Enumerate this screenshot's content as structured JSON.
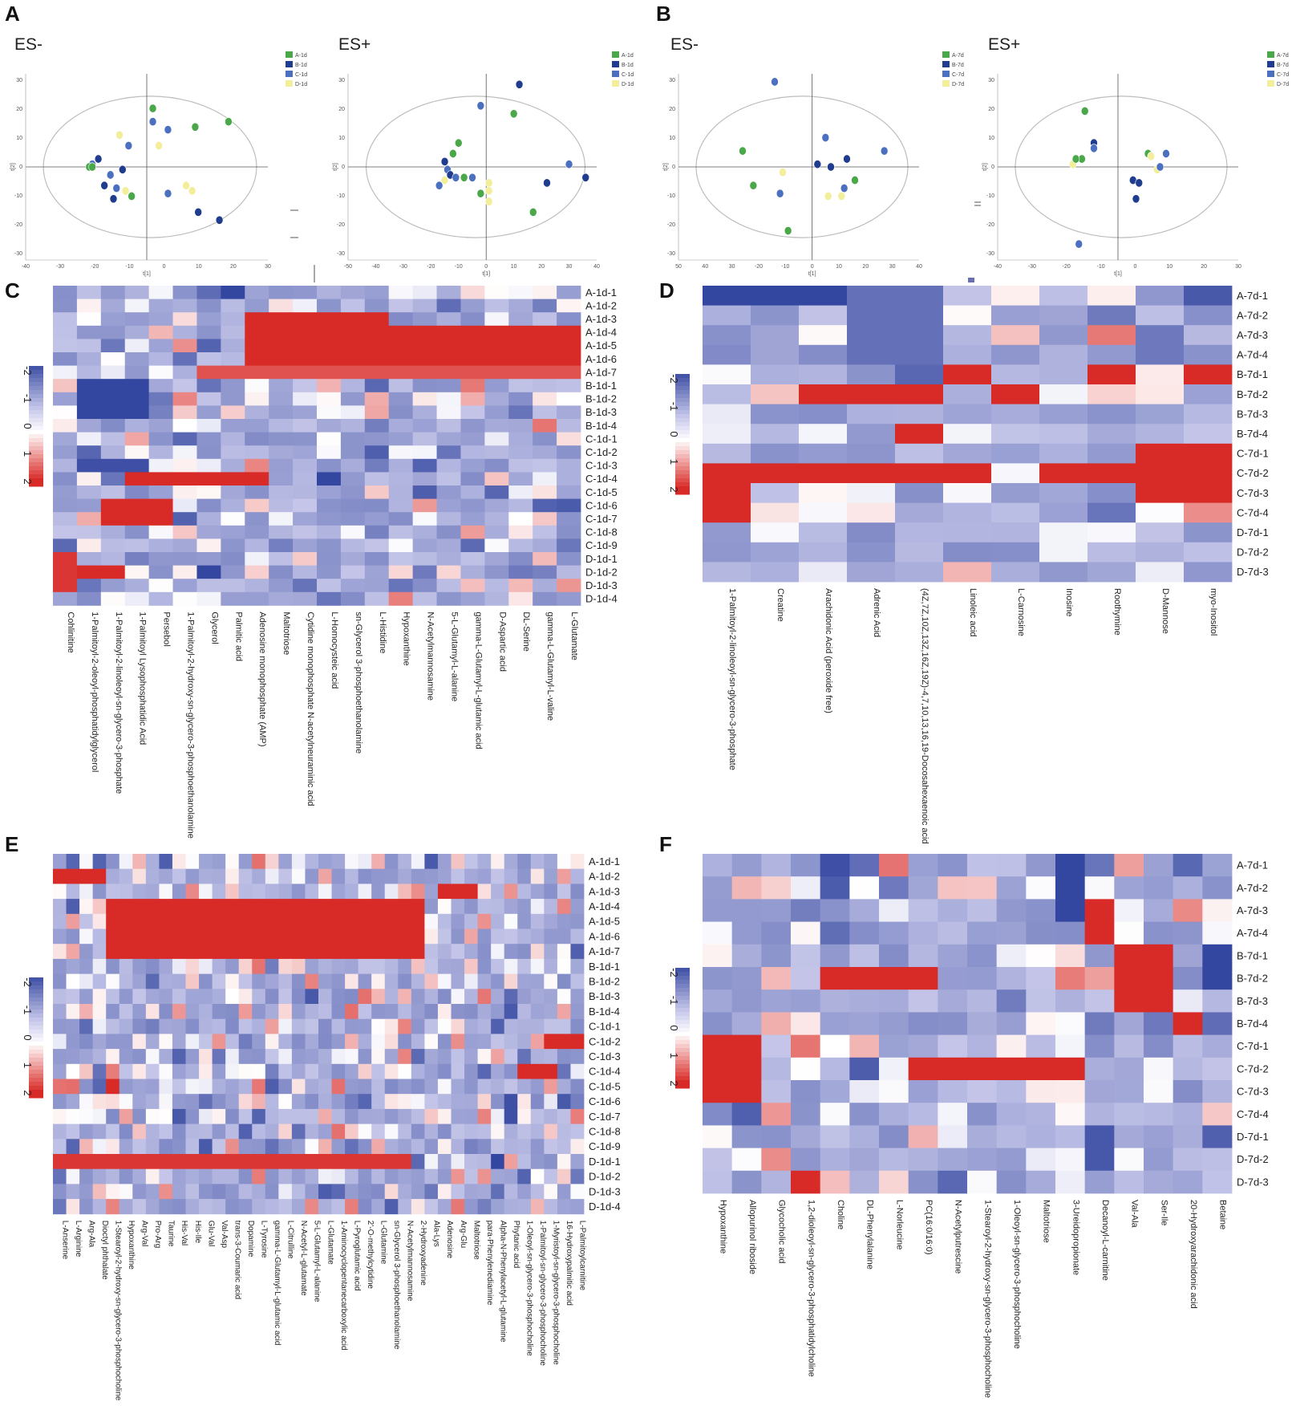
{
  "panels": {
    "A": "A",
    "B": "B",
    "C": "C",
    "D": "D",
    "E": "E",
    "F": "F"
  },
  "colors": {
    "green": "#4aa84a",
    "navy": "#1f3c8f",
    "blue": "#4b70c0",
    "yellow": "#f2ee9a",
    "ellipse": "#bdbdbd",
    "axis": "#555555"
  },
  "pca_tick_labels": {
    "y": [
      "30",
      "20",
      "10",
      "0",
      "-10",
      "-20",
      "-30"
    ],
    "x40": [
      "-40",
      "-30",
      "-20",
      "-10",
      "0",
      "10",
      "20",
      "30"
    ],
    "x50": [
      "-50",
      "-40",
      "-30",
      "-20",
      "-10",
      "0",
      "10",
      "20",
      "30",
      "40"
    ],
    "x50b": [
      "50",
      "40",
      "30",
      "-20",
      "-10",
      "0",
      "10",
      "20",
      "30",
      "40"
    ],
    "axis_x": "t[1]",
    "axis_y": "t[2]"
  },
  "chart_data": [
    {
      "type": "scatter",
      "panel": "A",
      "subtitle": "ES-",
      "xlim": [
        -40,
        40
      ],
      "ylim": [
        -35,
        35
      ],
      "legend": [
        "A-1d",
        "B-1d",
        "C-1d",
        "D-1d"
      ],
      "points": [
        {
          "g": 2,
          "x": -18,
          "y": 1
        },
        {
          "g": 1,
          "x": -16,
          "y": 3
        },
        {
          "g": 0,
          "x": -19,
          "y": 0
        },
        {
          "g": 0,
          "x": -18,
          "y": 0
        },
        {
          "g": 1,
          "x": -14,
          "y": -7
        },
        {
          "g": 2,
          "x": -12,
          "y": -3
        },
        {
          "g": 2,
          "x": -10,
          "y": -8
        },
        {
          "g": 1,
          "x": -11,
          "y": -12
        },
        {
          "g": 3,
          "x": -7,
          "y": -9
        },
        {
          "g": 0,
          "x": -5,
          "y": -11
        },
        {
          "g": 1,
          "x": -8,
          "y": -1
        },
        {
          "g": 2,
          "x": -6,
          "y": 8
        },
        {
          "g": 3,
          "x": -9,
          "y": 12
        },
        {
          "g": 2,
          "x": 2,
          "y": 17
        },
        {
          "g": 0,
          "x": 2,
          "y": 22
        },
        {
          "g": 2,
          "x": 7,
          "y": 14
        },
        {
          "g": 3,
          "x": 4,
          "y": 8
        },
        {
          "g": 0,
          "x": 16,
          "y": 15
        },
        {
          "g": 0,
          "x": 27,
          "y": 17
        },
        {
          "g": 2,
          "x": 7,
          "y": -10
        },
        {
          "g": 3,
          "x": 13,
          "y": -7
        },
        {
          "g": 3,
          "x": 15,
          "y": -9
        },
        {
          "g": 1,
          "x": 17,
          "y": -17
        },
        {
          "g": 1,
          "x": 24,
          "y": -20
        }
      ]
    },
    {
      "type": "scatter",
      "panel": "A",
      "subtitle": "ES+",
      "xlim": [
        -50,
        40
      ],
      "ylim": [
        -35,
        35
      ],
      "legend": [
        "A-1d",
        "B-1d",
        "C-1d",
        "D-1d"
      ],
      "points": [
        {
          "g": 1,
          "x": -15,
          "y": 2
        },
        {
          "g": 2,
          "x": -14,
          "y": -1
        },
        {
          "g": 1,
          "x": -13,
          "y": -3
        },
        {
          "g": 0,
          "x": -12,
          "y": 5
        },
        {
          "g": 0,
          "x": -10,
          "y": 9
        },
        {
          "g": 2,
          "x": -17,
          "y": -7
        },
        {
          "g": 3,
          "x": -15,
          "y": -5
        },
        {
          "g": 2,
          "x": -11,
          "y": -4
        },
        {
          "g": 0,
          "x": -8,
          "y": -4
        },
        {
          "g": 2,
          "x": -5,
          "y": -4
        },
        {
          "g": 0,
          "x": -2,
          "y": -10
        },
        {
          "g": 2,
          "x": -2,
          "y": 23
        },
        {
          "g": 1,
          "x": 12,
          "y": 31
        },
        {
          "g": 0,
          "x": 10,
          "y": 20
        },
        {
          "g": 3,
          "x": 1,
          "y": -6
        },
        {
          "g": 3,
          "x": 1,
          "y": -9
        },
        {
          "g": 3,
          "x": 1,
          "y": -13
        },
        {
          "g": 0,
          "x": 17,
          "y": -17
        },
        {
          "g": 1,
          "x": 22,
          "y": -6
        },
        {
          "g": 2,
          "x": 30,
          "y": 1
        },
        {
          "g": 1,
          "x": 36,
          "y": -4
        }
      ]
    },
    {
      "type": "scatter",
      "panel": "B",
      "subtitle": "ES-",
      "xlim": [
        -50,
        40
      ],
      "ylim": [
        -35,
        35
      ],
      "legend": [
        "A-7d",
        "B-7d",
        "C-7d",
        "D-7d"
      ],
      "points": [
        {
          "g": 2,
          "x": -14,
          "y": 32
        },
        {
          "g": 0,
          "x": -26,
          "y": 6
        },
        {
          "g": 0,
          "x": -22,
          "y": -7
        },
        {
          "g": 3,
          "x": -11,
          "y": -2
        },
        {
          "g": 2,
          "x": -12,
          "y": -10
        },
        {
          "g": 0,
          "x": -9,
          "y": -24
        },
        {
          "g": 1,
          "x": 2,
          "y": 1
        },
        {
          "g": 2,
          "x": 5,
          "y": 11
        },
        {
          "g": 1,
          "x": 7,
          "y": 0
        },
        {
          "g": 1,
          "x": 13,
          "y": 3
        },
        {
          "g": 2,
          "x": 27,
          "y": 6
        },
        {
          "g": 0,
          "x": 16,
          "y": -5
        },
        {
          "g": 2,
          "x": 12,
          "y": -8
        },
        {
          "g": 3,
          "x": 6,
          "y": -11
        },
        {
          "g": 3,
          "x": 11,
          "y": -11
        }
      ]
    },
    {
      "type": "scatter",
      "panel": "B",
      "subtitle": "ES+",
      "xlim": [
        -40,
        40
      ],
      "ylim": [
        -35,
        35
      ],
      "legend": [
        "A-7d",
        "B-7d",
        "C-7d",
        "D-7d"
      ],
      "points": [
        {
          "g": 0,
          "x": -11,
          "y": 21
        },
        {
          "g": 1,
          "x": -8,
          "y": 9
        },
        {
          "g": 2,
          "x": -8,
          "y": 7
        },
        {
          "g": 0,
          "x": -12,
          "y": 3
        },
        {
          "g": 3,
          "x": -15,
          "y": 1
        },
        {
          "g": 0,
          "x": -14,
          "y": 3
        },
        {
          "g": 2,
          "x": -13,
          "y": -29
        },
        {
          "g": 1,
          "x": 5,
          "y": -5
        },
        {
          "g": 1,
          "x": 7,
          "y": -6
        },
        {
          "g": 1,
          "x": 6,
          "y": -12
        },
        {
          "g": 0,
          "x": 10,
          "y": 5
        },
        {
          "g": 3,
          "x": 11,
          "y": 4
        },
        {
          "g": 2,
          "x": 16,
          "y": 5
        },
        {
          "g": 3,
          "x": 13,
          "y": -1
        },
        {
          "g": 2,
          "x": 14,
          "y": 0
        }
      ]
    },
    {
      "type": "heatmap",
      "panel": "C",
      "value_range": [
        -2,
        2
      ],
      "scale_labels": [
        "-2",
        "-1",
        "0",
        "1",
        "2"
      ],
      "rows": [
        "A-1d-1",
        "A-1d-2",
        "A-1d-3",
        "A-1d-4",
        "A-1d-5",
        "A-1d-6",
        "A-1d-7",
        "B-1d-1",
        "B-1d-2",
        "B-1d-3",
        "B-1d-4",
        "C-1d-1",
        "C-1d-2",
        "C-1d-3",
        "C-1d-4",
        "C-1d-5",
        "C-1d-6",
        "C-1d-7",
        "C-1d-8",
        "C-1d-9",
        "D-1d-1",
        "D-1d-2",
        "D-1d-3",
        "D-1d-4"
      ],
      "columns": [
        "Cohlinitine",
        "1-Palmitoyl-2-oleoyl-phosphatidylglycerol",
        "1-Palmitoyl-2-linoleoyl-sn-glycero-3-phosphate",
        "1-Palmitoyl Lysophosphatidic Acid",
        "Persebol",
        "1-Palmitoyl-2-hydroxy-sn-glycero-3-phosphoethanolamine",
        "Glycerol",
        "Palmitic acid",
        "Adenosine monophosphate (AMP)",
        "Maltotriose",
        "Cytidine monophosphate N-acetylneuraminic acid",
        "L-Homocysteic acid",
        "sn-Glycerol 3-phosphoethanolamine",
        "L-Histidine",
        "Hypoxanthine",
        "N-Acetylmannosamine",
        "5-L-Glutamyl-L-alanine",
        "gamma-L-Glutamyl-L-glutamic acid",
        "D-Aspartic acid",
        "DL-Serine",
        "gamma-L-Glutamyl-L-valine",
        "L-Glutamate"
      ],
      "seed": 11,
      "hot_regions": [
        [
          2,
          5,
          8,
          13,
          2.1
        ],
        [
          3,
          5,
          13,
          22,
          2.3
        ],
        [
          6,
          6,
          6,
          21,
          1.5
        ],
        [
          14,
          14,
          3,
          8,
          1.8
        ],
        [
          16,
          17,
          2,
          4,
          1.9
        ],
        [
          20,
          22,
          0,
          0,
          1.7
        ],
        [
          21,
          21,
          1,
          2,
          1.8
        ]
      ],
      "cold_regions": [
        [
          7,
          9,
          1,
          3,
          -2.2
        ],
        [
          13,
          13,
          1,
          3,
          -2.0
        ],
        [
          0,
          0,
          7,
          7,
          -2.3
        ],
        [
          14,
          14,
          11,
          11,
          -2.1
        ],
        [
          21,
          21,
          6,
          6,
          -2.1
        ]
      ]
    },
    {
      "type": "heatmap",
      "panel": "D",
      "value_range": [
        -2,
        2
      ],
      "scale_labels": [
        "-2",
        "-1",
        "0",
        "1",
        "2"
      ],
      "rows": [
        "A-7d-1",
        "A-7d-2",
        "A-7d-3",
        "A-7d-4",
        "B-7d-1",
        "B-7d-2",
        "B-7d-3",
        "B-7d-4",
        "C-7d-1",
        "C-7d-2",
        "C-7d-3",
        "C-7d-4",
        "D-7d-1",
        "D-7d-2",
        "D-7d-3"
      ],
      "columns": [
        "1-Palmitoyl-2-linoleoyl-sn-glycero-3-phosphate",
        "Creatine",
        "Arachidonic Acid (peroxide free)",
        "Adrenic Acid",
        "(4Z,7Z,10Z,13Z,16Z,19Z)-4,7,10,13,16,19-Docosahexaenoic acid",
        "Linoleic acid",
        "L-Carnosine",
        "Inosine",
        "Roothymine",
        "D-Mannose",
        "myo-Inositol"
      ],
      "seed": 23,
      "hot_regions": [
        [
          9,
          11,
          0,
          0,
          2.2
        ],
        [
          9,
          9,
          1,
          5,
          2.1
        ],
        [
          5,
          5,
          2,
          4,
          2.0
        ],
        [
          7,
          7,
          4,
          4,
          2.0
        ],
        [
          8,
          10,
          9,
          10,
          2.1
        ],
        [
          9,
          9,
          7,
          10,
          2.2
        ],
        [
          4,
          4,
          5,
          5,
          2.0
        ],
        [
          4,
          4,
          8,
          8,
          2.0
        ],
        [
          5,
          5,
          6,
          6,
          1.9
        ],
        [
          4,
          4,
          10,
          10,
          1.8
        ]
      ],
      "cold_regions": [
        [
          0,
          0,
          0,
          2,
          -2.3
        ],
        [
          0,
          3,
          3,
          4,
          -1.6
        ],
        [
          2,
          3,
          9,
          9,
          -1.5
        ]
      ]
    },
    {
      "type": "heatmap",
      "panel": "E",
      "value_range": [
        -2,
        2
      ],
      "scale_labels": [
        "-2",
        "-1",
        "0",
        "1",
        "2"
      ],
      "rows": [
        "A-1d-1",
        "A-1d-2",
        "A-1d-3",
        "A-1d-4",
        "A-1d-5",
        "A-1d-6",
        "A-1d-7",
        "B-1d-1",
        "B-1d-2",
        "B-1d-3",
        "B-1d-4",
        "C-1d-1",
        "C-1d-2",
        "C-1d-3",
        "C-1d-4",
        "C-1d-5",
        "C-1d-6",
        "C-1d-7",
        "C-1d-8",
        "C-1d-9",
        "D-1d-1",
        "D-1d-2",
        "D-1d-3",
        "D-1d-4"
      ],
      "columns": [
        "L-Anserine",
        "L-Arginine",
        "Arg-Ala",
        "Dioctyl phthalate",
        "1-Stearoyl-2-hydroxy-sn-glycero-3-phosphocholine",
        "Hypoxanthine",
        "Arg-Val",
        "Pro-Arg",
        "Taurine",
        "His-Val",
        "His-Ile",
        "Glu-Val",
        "Val-Asp",
        "trans-3-Coumaric acid",
        "Dopamine",
        "L-Tyrosine",
        "gamma-L-Glutamyl-L-glutamic acid",
        "L-Citrulline",
        "N-Acetyl-L-glutamate",
        "5-L-Glutamyl-L-alanine",
        "L-Glutamate",
        "1-Aminocyclopentanecarboxylic acid",
        "L-Pyroglutamic acid",
        "2'-O-methylcytidine",
        "L-Glutamine",
        "sn-Glycerol 3-phosphoethanolamine",
        "N-Acetylmannosamine",
        "2-Hydroxyadenine",
        "Ala-Lys",
        "Adenosine",
        "Arg-Glu",
        "Maltotriose",
        "para-Phenylenediamine",
        "Alpha-N-Phenylacetyl-L-glutamine",
        "Phytanic acid",
        "1-Oleoyl-sn-glycero-3-phosphocholine",
        "1-Palmitoyl-sn-glycero-3-phosphocholine",
        "1-Myristoyl-sn-glycero-3-phosphocholine",
        "16-Hydroxypalmitic acid",
        "L-Palmitoylcarnitine"
      ],
      "seed": 37,
      "hot_regions": [
        [
          1,
          1,
          0,
          3,
          2.2
        ],
        [
          3,
          6,
          5,
          27,
          2.3
        ],
        [
          3,
          6,
          4,
          4,
          2.1
        ],
        [
          20,
          20,
          0,
          26,
          1.7
        ],
        [
          2,
          2,
          29,
          31,
          2.0
        ],
        [
          15,
          15,
          4,
          4,
          2.0
        ],
        [
          14,
          14,
          35,
          37,
          2.0
        ],
        [
          12,
          12,
          37,
          39,
          1.8
        ]
      ],
      "cold_regions": [
        [
          20,
          20,
          33,
          33,
          -2.1
        ],
        [
          16,
          17,
          34,
          34,
          -2.0
        ],
        [
          11,
          11,
          33,
          33,
          -1.8
        ]
      ]
    },
    {
      "type": "heatmap",
      "panel": "F",
      "value_range": [
        -2,
        2
      ],
      "scale_labels": [
        "-2",
        "-1",
        "0",
        "1",
        "2"
      ],
      "rows": [
        "A-7d-1",
        "A-7d-2",
        "A-7d-3",
        "A-7d-4",
        "B-7d-1",
        "B-7d-2",
        "B-7d-3",
        "B-7d-4",
        "C-7d-1",
        "C-7d-2",
        "C-7d-3",
        "C-7d-4",
        "D-7d-1",
        "D-7d-2",
        "D-7d-3"
      ],
      "columns": [
        "Hypoxanthine",
        "Allopurinol riboside",
        "Glycocholic acid",
        "1,2-dioleoyl-sn-glycero-3-phosphatidylcholine",
        "Choline",
        "DL-Phenylalanine",
        "L-Norleucine",
        "PC(16:0/16:0)",
        "N-Acetylputrescine",
        "1-Stearoyl-2-hydroxy-sn-glycero-3-phosphocholine",
        "1-Oleoyl-sn-glycero-3-phosphocholine",
        "Maltotriose",
        "3-Ureidopropionate",
        "Decanoyl-L-carnitine",
        "Val-Ala",
        "Ser-Ile",
        "20-Hydroxyarachidonic acid",
        "Betaine"
      ],
      "seed": 51,
      "hot_regions": [
        [
          5,
          5,
          4,
          7,
          2.2
        ],
        [
          9,
          9,
          7,
          12,
          2.2
        ],
        [
          8,
          10,
          0,
          1,
          2.0
        ],
        [
          4,
          6,
          14,
          15,
          2.1
        ],
        [
          14,
          14,
          3,
          3,
          2.0
        ],
        [
          2,
          3,
          13,
          13,
          1.8
        ],
        [
          7,
          7,
          16,
          16,
          2.0
        ]
      ],
      "cold_regions": [
        [
          0,
          0,
          4,
          4,
          -2.0
        ],
        [
          0,
          2,
          12,
          12,
          -2.2
        ],
        [
          4,
          5,
          17,
          17,
          -2.2
        ],
        [
          12,
          13,
          13,
          13,
          -1.9
        ],
        [
          12,
          12,
          17,
          17,
          -1.8
        ]
      ]
    }
  ]
}
